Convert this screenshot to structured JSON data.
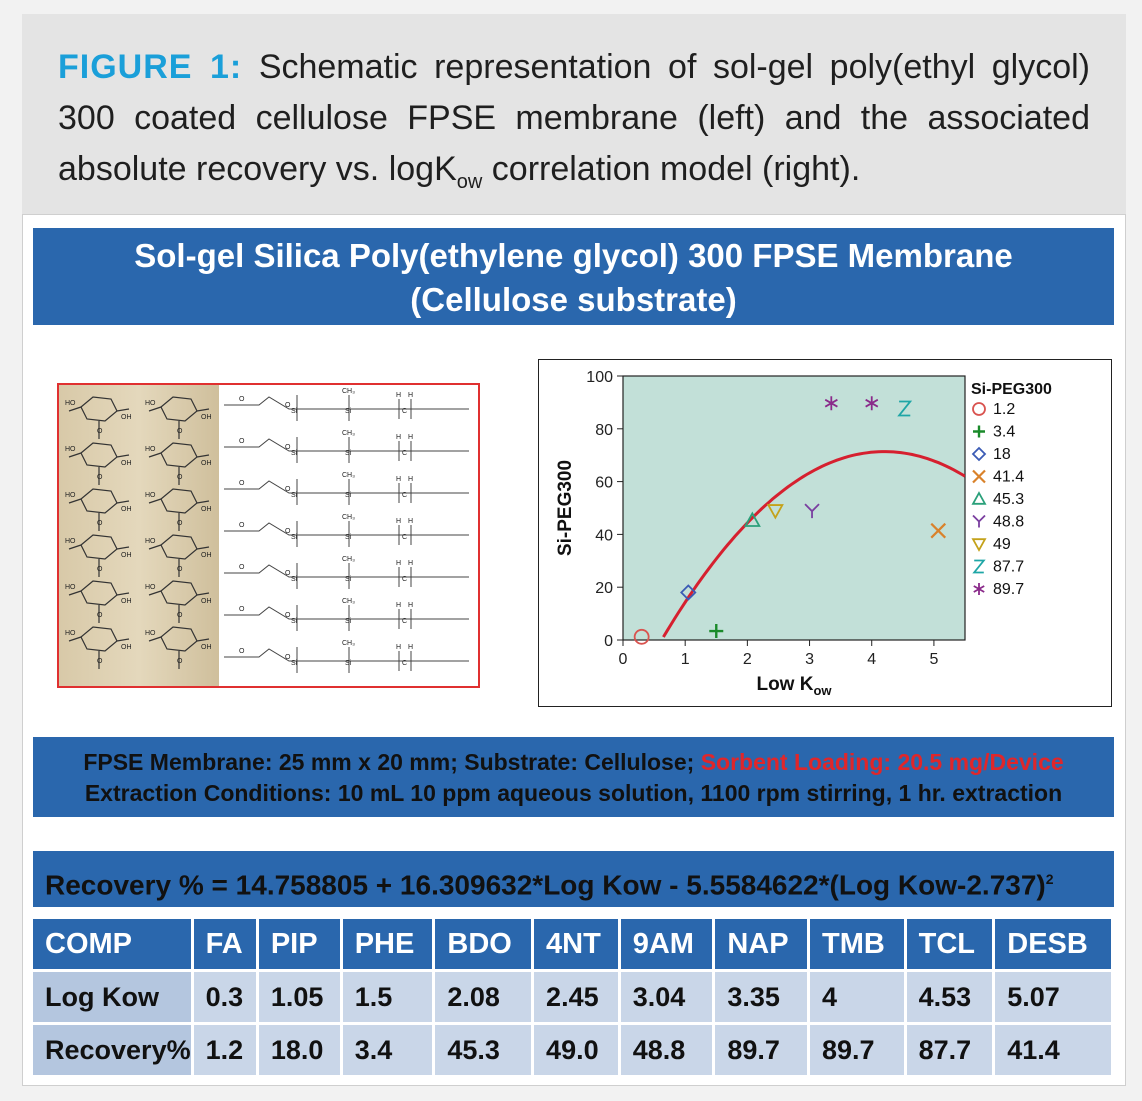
{
  "caption": {
    "lead": "FIGURE 1:",
    "text_part1": " Schematic representation of sol-gel poly(ethyl glycol) 300 coated cellulose FPSE membrane (left) and the associated absolute recovery vs. logK",
    "text_sub": "ow",
    "text_part2": " correlation model (right)."
  },
  "panel_title": {
    "line1": "Sol-gel Silica Poly(ethylene glycol) 300 FPSE Membrane",
    "line2": "(Cellulose substrate)"
  },
  "membrane_image": {
    "description": "Sol-gel PEG 300 coated cellulose chemical structure schematic",
    "labels": [
      "HO",
      "OH",
      "O",
      "Si",
      "CH₃",
      "H",
      "C"
    ]
  },
  "chart_data": {
    "type": "scatter",
    "title": "",
    "xlabel": "Low K",
    "xlabel_sub": "ow",
    "ylabel": "Si-PEG300",
    "xlim": [
      0,
      5.5
    ],
    "ylim": [
      0,
      100
    ],
    "xticks": [
      0,
      1,
      2,
      3,
      4,
      5
    ],
    "yticks": [
      0,
      20,
      40,
      60,
      80,
      100
    ],
    "background": "#c2e0d8",
    "legend_title": "Si-PEG300",
    "legend_placement": "right",
    "series": [
      {
        "name": "1.2",
        "marker": "circle",
        "color": "#d9534f",
        "x": [
          0.3
        ],
        "y": [
          1.2
        ]
      },
      {
        "name": "3.4",
        "marker": "plus",
        "color": "#1a8a2a",
        "x": [
          1.5
        ],
        "y": [
          3.4
        ]
      },
      {
        "name": "18",
        "marker": "diamond",
        "color": "#3b5bb5",
        "x": [
          1.05
        ],
        "y": [
          18
        ]
      },
      {
        "name": "41.4",
        "marker": "x",
        "color": "#d9822b",
        "x": [
          5.07
        ],
        "y": [
          41.4
        ]
      },
      {
        "name": "45.3",
        "marker": "triangle",
        "color": "#2aa07a",
        "x": [
          2.08
        ],
        "y": [
          45.3
        ]
      },
      {
        "name": "48.8",
        "marker": "Y",
        "color": "#7a3fa0",
        "x": [
          3.04
        ],
        "y": [
          48.8
        ]
      },
      {
        "name": "49",
        "marker": "triangle-down",
        "color": "#c4a21a",
        "x": [
          2.45
        ],
        "y": [
          49.0
        ]
      },
      {
        "name": "87.7",
        "marker": "Z",
        "color": "#1fa6a6",
        "x": [
          4.53
        ],
        "y": [
          87.7
        ]
      },
      {
        "name": "89.7",
        "marker": "asterisk",
        "color": "#8a2a8a",
        "x": [
          3.35,
          4.0
        ],
        "y": [
          89.7,
          89.7
        ]
      }
    ],
    "fit_curve": {
      "color": "#d6202f",
      "equation": "14.758805 + 16.309632*x - 5.5584622*(x-2.737)^2",
      "x_range": [
        0.65,
        5.5
      ]
    }
  },
  "info": {
    "line1_a": "FPSE Membrane: 25 mm x 20 mm; Substrate: Cellulose; ",
    "line1_b": "Sorbent Loading: 20.5 mg/Device",
    "line2": "Extraction Conditions: 10 mL 10 ppm aqueous solution, 1100 rpm stirring, 1 hr. extraction"
  },
  "equation": {
    "text": "Recovery % = 14.758805 + 16.309632*Log Kow - 5.5584622*(Log Kow-2.737)",
    "sup": "2"
  },
  "table": {
    "headers": [
      "COMP",
      "FA",
      "PIP",
      "PHE",
      "BDO",
      "4NT",
      "9AM",
      "NAP",
      "TMB",
      "TCL",
      "DESB"
    ],
    "rows": [
      [
        "Log Kow",
        "0.3",
        "1.05",
        "1.5",
        "2.08",
        "2.45",
        "3.04",
        "3.35",
        "4",
        "4.53",
        "5.07"
      ],
      [
        "Recovery%",
        "1.2",
        "18.0",
        "3.4",
        "45.3",
        "49.0",
        "48.8",
        "89.7",
        "89.7",
        "87.7",
        "41.4"
      ]
    ]
  }
}
